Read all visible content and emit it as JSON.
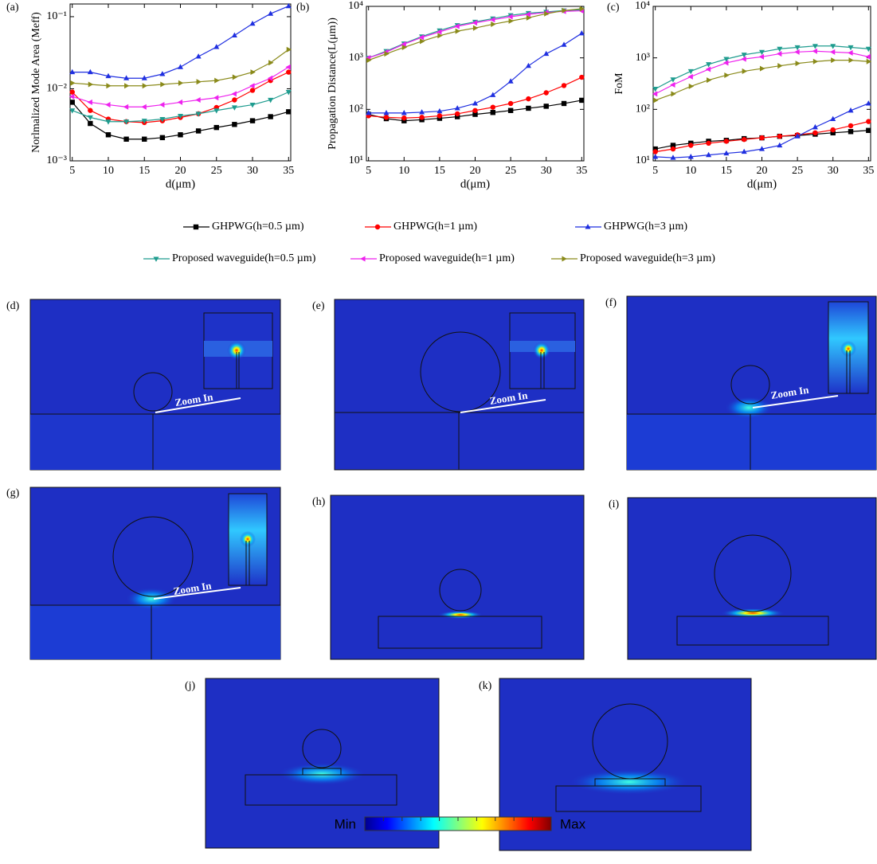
{
  "chart_data": [
    {
      "type": "line",
      "panel_label": "(a)",
      "x_label": "d(μm)",
      "y_label": "Norlmalized Mode Area (Meff)",
      "log_y": true,
      "x": [
        5,
        7.5,
        10,
        12.5,
        15,
        17.5,
        20,
        22.5,
        25,
        27.5,
        30,
        32.5,
        35
      ],
      "xlim": [
        4.7,
        35.3
      ],
      "xticks": [
        5,
        10,
        15,
        20,
        25,
        30,
        35
      ],
      "ylim": [
        0.001,
        0.15
      ],
      "yticks": [
        {
          "value": 0.001,
          "label": "10⁻³"
        },
        {
          "value": 0.01,
          "label": "10⁻²"
        },
        {
          "value": 0.1,
          "label": "10⁻¹"
        }
      ],
      "series": [
        {
          "name": "GHPWG(h=0.5 µm)",
          "color": "#000000",
          "marker": "square",
          "values": [
            0.0065,
            0.0033,
            0.0023,
            0.002,
            0.002,
            0.0021,
            0.0023,
            0.0026,
            0.0029,
            0.0032,
            0.0036,
            0.0041,
            0.0048
          ]
        },
        {
          "name": "GHPWG(h=1 µm)",
          "color": "#ff0000",
          "marker": "circle",
          "values": [
            0.009,
            0.005,
            0.0038,
            0.0035,
            0.0034,
            0.0036,
            0.004,
            0.0045,
            0.0055,
            0.007,
            0.0095,
            0.013,
            0.017
          ]
        },
        {
          "name": "GHPWG(h=3 µm)",
          "color": "#1f2fe0",
          "marker": "triangle-up",
          "values": [
            0.017,
            0.017,
            0.015,
            0.014,
            0.014,
            0.016,
            0.02,
            0.028,
            0.038,
            0.055,
            0.08,
            0.11,
            0.14
          ]
        },
        {
          "name": "Proposed waveguide(h=0.5 µm)",
          "color": "#1f9c8f",
          "marker": "triangle-down",
          "values": [
            0.005,
            0.004,
            0.0035,
            0.0035,
            0.0036,
            0.0038,
            0.0042,
            0.0045,
            0.005,
            0.0055,
            0.006,
            0.007,
            0.009
          ]
        },
        {
          "name": "Proposed waveguide(h=1 µm)",
          "color": "#ee22ee",
          "marker": "triangle-left",
          "values": [
            0.0078,
            0.0065,
            0.006,
            0.0056,
            0.0056,
            0.006,
            0.0065,
            0.007,
            0.0075,
            0.0085,
            0.011,
            0.014,
            0.02
          ]
        },
        {
          "name": "Proposed waveguide(h=3 µm)",
          "color": "#8a8a1a",
          "marker": "triangle-right",
          "values": [
            0.012,
            0.0115,
            0.011,
            0.011,
            0.011,
            0.0115,
            0.012,
            0.0125,
            0.013,
            0.0145,
            0.017,
            0.023,
            0.035
          ]
        }
      ]
    },
    {
      "type": "line",
      "panel_label": "(b)",
      "x_label": "d(μm)",
      "y_label": "Propagation Distance(L(μm))",
      "log_y": true,
      "x": [
        5,
        7.5,
        10,
        12.5,
        15,
        17.5,
        20,
        22.5,
        25,
        27.5,
        30,
        32.5,
        35
      ],
      "xlim": [
        4.7,
        35.3
      ],
      "xticks": [
        5,
        10,
        15,
        20,
        25,
        30,
        35
      ],
      "ylim": [
        10,
        10000
      ],
      "yticks": [
        {
          "value": 10,
          "label": "10¹"
        },
        {
          "value": 100,
          "label": "10²"
        },
        {
          "value": 1000,
          "label": "10³"
        },
        {
          "value": 10000,
          "label": "10⁴"
        }
      ],
      "series": [
        {
          "color": "#000000",
          "marker": "square",
          "values": [
            80,
            66,
            60,
            63,
            67,
            72,
            80,
            87,
            95,
            105,
            115,
            130,
            150
          ]
        },
        {
          "color": "#ff0000",
          "marker": "circle",
          "values": [
            75,
            70,
            68,
            70,
            75,
            82,
            95,
            110,
            130,
            160,
            210,
            290,
            420
          ]
        },
        {
          "color": "#1f2fe0",
          "marker": "triangle-up",
          "values": [
            85,
            85,
            85,
            88,
            92,
            105,
            130,
            190,
            350,
            700,
            1200,
            1800,
            3000
          ]
        },
        {
          "color": "#1f9c8f",
          "marker": "triangle-down",
          "values": [
            1000,
            1350,
            1900,
            2600,
            3400,
            4300,
            5000,
            5800,
            6700,
            7400,
            7800,
            8300,
            8600
          ]
        },
        {
          "color": "#ee22ee",
          "marker": "triangle-left",
          "values": [
            1000,
            1300,
            1850,
            2500,
            3200,
            4100,
            4800,
            5500,
            6300,
            7000,
            7600,
            8000,
            8200
          ]
        },
        {
          "color": "#8a8a1a",
          "marker": "triangle-right",
          "values": [
            900,
            1200,
            1600,
            2100,
            2700,
            3300,
            3800,
            4500,
            5200,
            6000,
            7200,
            8300,
            9000
          ]
        }
      ]
    },
    {
      "type": "line",
      "panel_label": "(c)",
      "x_label": "d(μm)",
      "y_label": "FoM",
      "log_y": true,
      "x": [
        5,
        7.5,
        10,
        12.5,
        15,
        17.5,
        20,
        22.5,
        25,
        27.5,
        30,
        32.5,
        35
      ],
      "xlim": [
        4.7,
        35.3
      ],
      "xticks": [
        5,
        10,
        15,
        20,
        25,
        30,
        35
      ],
      "ylim": [
        10,
        10000
      ],
      "yticks": [
        {
          "value": 10,
          "label": "10¹"
        },
        {
          "value": 100,
          "label": "10²"
        },
        {
          "value": 1000,
          "label": "10³"
        },
        {
          "value": 10000,
          "label": "10⁴"
        }
      ],
      "series": [
        {
          "color": "#000000",
          "marker": "square",
          "values": [
            17,
            20,
            22,
            24,
            25,
            27,
            28,
            30,
            31,
            33,
            35,
            37,
            39
          ]
        },
        {
          "color": "#ff0000",
          "marker": "circle",
          "values": [
            15,
            17,
            20,
            22,
            24,
            26,
            28,
            30,
            32,
            35,
            40,
            48,
            58
          ]
        },
        {
          "color": "#1f2fe0",
          "marker": "triangle-up",
          "values": [
            12,
            11.5,
            12,
            13,
            14,
            15,
            17,
            20,
            30,
            45,
            65,
            95,
            130
          ]
        },
        {
          "color": "#1f9c8f",
          "marker": "triangle-down",
          "values": [
            250,
            380,
            550,
            750,
            950,
            1150,
            1300,
            1500,
            1600,
            1700,
            1700,
            1600,
            1500
          ]
        },
        {
          "color": "#ee22ee",
          "marker": "triangle-left",
          "values": [
            200,
            300,
            430,
            600,
            800,
            950,
            1050,
            1200,
            1300,
            1350,
            1300,
            1250,
            1050
          ]
        },
        {
          "color": "#8a8a1a",
          "marker": "triangle-right",
          "values": [
            150,
            200,
            280,
            370,
            460,
            550,
            620,
            700,
            780,
            850,
            900,
            900,
            850
          ]
        }
      ]
    }
  ],
  "field_panels": {
    "labels": [
      "(d)",
      "(e)",
      "(f)",
      "(g)",
      "(h)",
      "(i)",
      "(j)",
      "(k)"
    ],
    "zoom_label": "Zoom In"
  },
  "colorbar": {
    "min_label": "Min",
    "max_label": "Max"
  }
}
